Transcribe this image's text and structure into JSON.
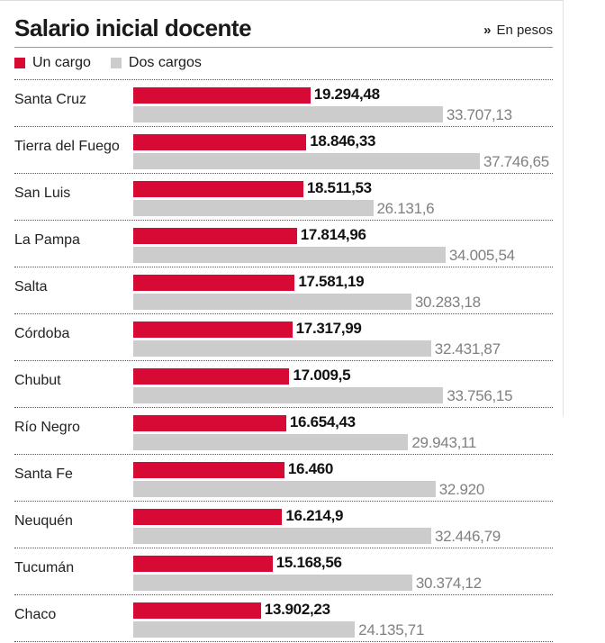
{
  "chart_data": {
    "type": "bar",
    "orientation": "horizontal",
    "title": "Salario inicial docente",
    "unit_note": "En pesos",
    "xlim": [
      0,
      40000
    ],
    "categories": [
      "Santa Cruz",
      "Tierra del Fuego",
      "San Luis",
      "La Pampa",
      "Salta",
      "Córdoba",
      "Chubut",
      "Río Negro",
      "Santa Fe",
      "Neuquén",
      "Tucumán",
      "Chaco"
    ],
    "series": [
      {
        "name": "Un cargo",
        "color": "#d70a35",
        "values": [
          19294.48,
          18846.33,
          18511.53,
          17814.96,
          17581.19,
          17317.99,
          17009.5,
          16654.43,
          16460,
          16214.9,
          15168.56,
          13902.23
        ],
        "labels": [
          "19.294,48",
          "18.846,33",
          "18.511,53",
          "17.814,96",
          "17.581,19",
          "17.317,99",
          "17.009,5",
          "16.654,43",
          "16.460",
          "16.214,9",
          "15.168,56",
          "13.902,23"
        ]
      },
      {
        "name": "Dos cargos",
        "color": "#cccccc",
        "values": [
          33707.13,
          37746.65,
          26131.6,
          34005.54,
          30283.18,
          32431.87,
          33756.15,
          29943.11,
          32920,
          32446.79,
          30374.12,
          24135.71
        ],
        "labels": [
          "33.707,13",
          "37.746,65",
          "26.131,6",
          "34.005,54",
          "30.283,18",
          "32.431,87",
          "33.756,15",
          "29.943,11",
          "32.920",
          "32.446,79",
          "30.374,12",
          "24.135,71"
        ]
      }
    ]
  }
}
